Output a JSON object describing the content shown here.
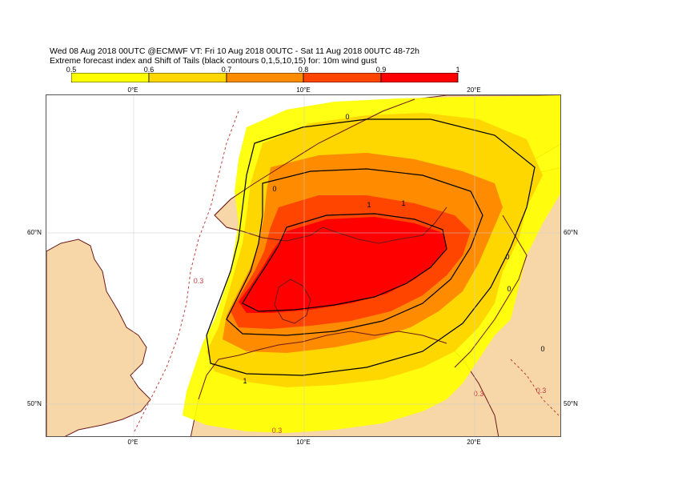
{
  "header": {
    "line1": "Wed 08 Aug 2018 00UTC @ECMWF VT: Fri 10 Aug 2018 00UTC - Sat 11 Aug 2018 00UTC  48-72h",
    "line2": "Extreme forecast index and Shift of Tails (black contours 0,1,5,10,15) for: 10m wind gust"
  },
  "colorbar": {
    "labels": [
      "0.5",
      "0.6",
      "0.7",
      "0.8",
      "0.9",
      "1"
    ],
    "colors": [
      "#ffff00",
      "#ffd700",
      "#ff8c00",
      "#ff4500",
      "#ff0000"
    ]
  },
  "axes": {
    "lon_top": [
      "0°E",
      "10°E",
      "20°E"
    ],
    "lon_bottom": [
      "0°E",
      "10°E",
      "20°E"
    ],
    "lat_left": [
      "60°N",
      "50°N"
    ],
    "lat_right": [
      "60°N",
      "50°N"
    ]
  },
  "contour_labels": [
    "1",
    "1",
    "1",
    "0",
    "0",
    "0",
    "0",
    "0",
    "0.3",
    "0.3",
    "0.3",
    "0.3"
  ],
  "colors": {
    "land": "#f7d7a8",
    "sea": "#ffffff",
    "coast": "#6b1a1a",
    "efi_05": "#ffff00",
    "efi_06": "#ffd700",
    "efi_07": "#ff8c00",
    "efi_08": "#ff4500",
    "efi_09": "#ff0000",
    "red_contour": "#c04040"
  }
}
